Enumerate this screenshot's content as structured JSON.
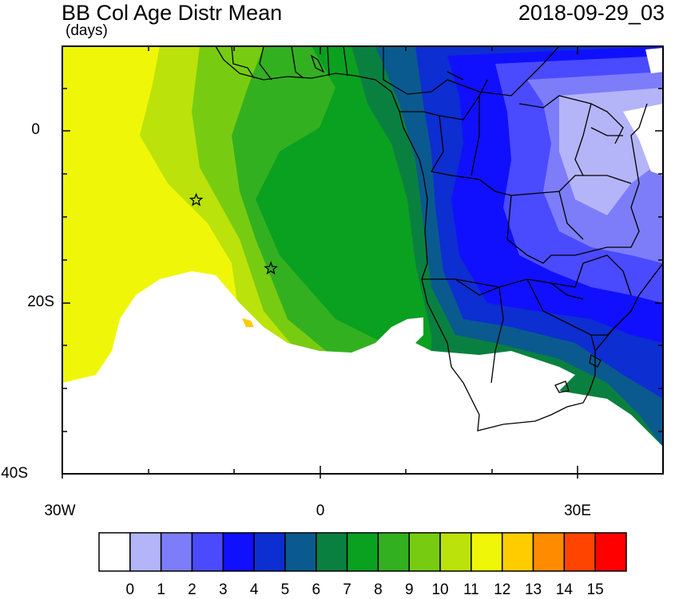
{
  "header": {
    "title": "BB Col Age Distr Mean",
    "units": "(days)",
    "datetime": "2018-09-29_03"
  },
  "axes": {
    "y_ticks": [
      "0",
      "20S",
      "40S"
    ],
    "x_ticks": [
      "30W",
      "0",
      "30E"
    ]
  },
  "colorbar": {
    "labels": [
      "0",
      "1",
      "2",
      "3",
      "4",
      "5",
      "6",
      "7",
      "8",
      "9",
      "10",
      "11",
      "12",
      "13",
      "14",
      "15"
    ],
    "colors": [
      "#ffffff",
      "#b4b4f8",
      "#7d7dfa",
      "#4a4aff",
      "#1010ff",
      "#0d2ed0",
      "#0a5a8f",
      "#0a8040",
      "#0aa020",
      "#33b020",
      "#77cc11",
      "#bbe20a",
      "#f0f608",
      "#ffcc00",
      "#ff8c00",
      "#ff4400",
      "#ff0000"
    ]
  },
  "markers": [
    {
      "name": "star-marker-1",
      "lon": -14.4,
      "lat": -8.0
    },
    {
      "name": "star-marker-2",
      "lon": -5.7,
      "lat": -16.0
    }
  ]
}
